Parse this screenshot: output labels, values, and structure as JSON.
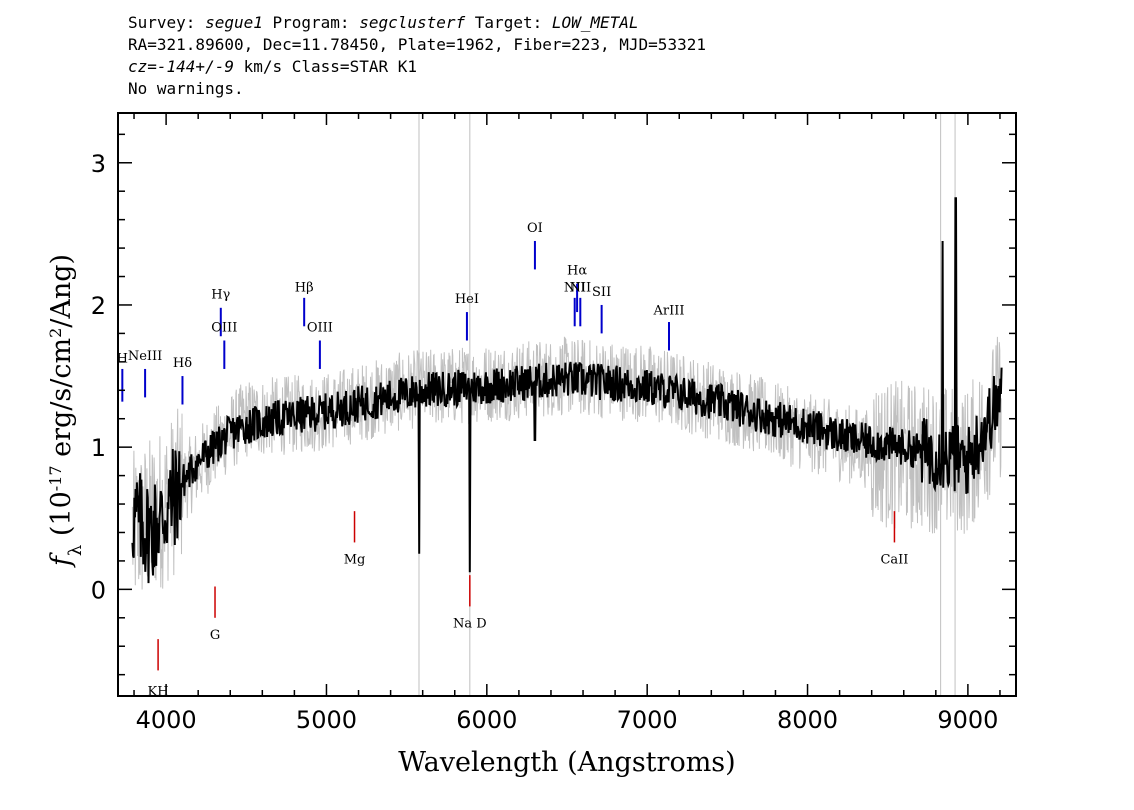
{
  "header": {
    "survey_label": "Survey: ",
    "survey": "segue1",
    "program_label": " Program: ",
    "program": "segclusterf",
    "target_label": " Target: ",
    "target": "LOW_METAL",
    "line2": "RA=321.89600, Dec=11.78450, Plate=1962, Fiber=223, MJD=53321",
    "cz": "cz=-144+/-9",
    "line3_rest": " km/s Class=STAR K1",
    "line4": "No warnings."
  },
  "chart_data": {
    "type": "line",
    "title": "",
    "xlabel": "Wavelength (Angstroms)",
    "ylabel": "f_λ (10^-17 erg/s/cm^2/Ang)",
    "xlim": [
      3700,
      9300
    ],
    "ylim": [
      -0.75,
      3.35
    ],
    "xticks": [
      "4000",
      "5000",
      "6000",
      "7000",
      "8000",
      "9000"
    ],
    "yticks": [
      "0",
      "1",
      "2",
      "3"
    ],
    "series": [
      {
        "style": "noise",
        "color": "#c0c0c0",
        "x": [
          3800,
          4000,
          4300,
          4500,
          5000,
          5500,
          6000,
          6500,
          7000,
          7500,
          8000,
          8500,
          9000,
          9200
        ],
        "y": [
          0.4,
          0.6,
          1.0,
          1.2,
          1.25,
          1.4,
          1.45,
          1.5,
          1.45,
          1.3,
          1.1,
          0.95,
          0.9,
          1.3
        ]
      },
      {
        "style": "flux",
        "color": "#000000",
        "x": [
          3800,
          3900,
          4000,
          4100,
          4200,
          4300,
          4400,
          4500,
          4700,
          5000,
          5200,
          5400,
          5600,
          5900,
          6200,
          6500,
          6800,
          7000,
          7200,
          7500,
          7800,
          8000,
          8300,
          8600,
          8800,
          9000,
          9200
        ],
        "y": [
          0.5,
          0.4,
          0.55,
          0.75,
          0.9,
          1.0,
          1.1,
          1.15,
          1.2,
          1.25,
          1.3,
          1.35,
          1.4,
          1.42,
          1.45,
          1.48,
          1.45,
          1.42,
          1.38,
          1.3,
          1.2,
          1.15,
          1.05,
          1.0,
          0.95,
          0.9,
          1.35
        ]
      }
    ],
    "emission_lines": [
      {
        "label": "H",
        "wave": 3727,
        "color": "#0000cc"
      },
      {
        "label": "NeIII",
        "wave": 3869,
        "color": "#0000cc"
      },
      {
        "label": "Hδ",
        "wave": 4102,
        "color": "#0000cc"
      },
      {
        "label": "Hγ",
        "wave": 4341,
        "color": "#0000cc"
      },
      {
        "label": "OIII",
        "wave": 4363,
        "color": "#0000cc"
      },
      {
        "label": "Hβ",
        "wave": 4861,
        "color": "#0000cc"
      },
      {
        "label": "OIII",
        "wave": 4959,
        "color": "#0000cc"
      },
      {
        "label": "HeI",
        "wave": 5876,
        "color": "#0000cc"
      },
      {
        "label": "OI",
        "wave": 6300,
        "color": "#0000cc"
      },
      {
        "label": "NII",
        "wave": 6548,
        "color": "#0000cc"
      },
      {
        "label": "Hα",
        "wave": 6563,
        "color": "#0000cc"
      },
      {
        "label": "NII",
        "wave": 6583,
        "color": "#0000cc"
      },
      {
        "label": "SII",
        "wave": 6716,
        "color": "#0000cc"
      },
      {
        "label": "ArIII",
        "wave": 7136,
        "color": "#0000cc"
      }
    ],
    "absorption_lines": [
      {
        "label": "KH",
        "wave": 3950,
        "color": "#cc0000"
      },
      {
        "label": "G",
        "wave": 4305,
        "color": "#cc0000"
      },
      {
        "label": "Mg",
        "wave": 5175,
        "color": "#cc0000"
      },
      {
        "label": "Na D",
        "wave": 5894,
        "color": "#cc0000"
      },
      {
        "label": "CaII",
        "wave": 8542,
        "color": "#cc0000"
      }
    ]
  }
}
